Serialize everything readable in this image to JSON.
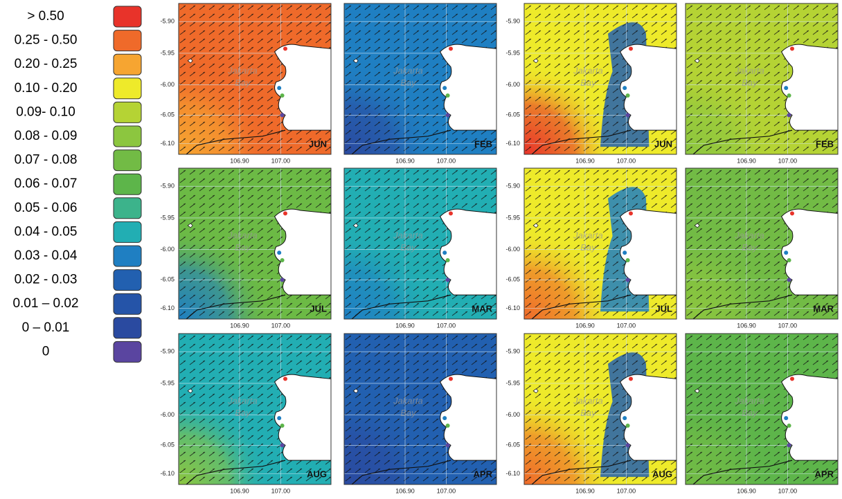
{
  "legend": [
    {
      "label": "> 0.50",
      "color": "#e8332a"
    },
    {
      "label": "0.25 - 0.50",
      "color": "#ef6a2a"
    },
    {
      "label": "0.20 - 0.25",
      "color": "#f6a531"
    },
    {
      "label": "0.10 - 0.20",
      "color": "#eeea2a"
    },
    {
      "label": "0.09- 0.10",
      "color": "#b5d334"
    },
    {
      "label": "0.08 - 0.09",
      "color": "#8cc63f"
    },
    {
      "label": "0.07 - 0.08",
      "color": "#72bb45"
    },
    {
      "label": "0.06 - 0.07",
      "color": "#5db54a"
    },
    {
      "label": "0.05 - 0.06",
      "color": "#3cb38b"
    },
    {
      "label": "0.04 - 0.05",
      "color": "#22aeb3"
    },
    {
      "label": "0.03 - 0.04",
      "color": "#1f7fc2"
    },
    {
      "label": "0.02 - 0.03",
      "color": "#2260b0"
    },
    {
      "label": "0.01 – 0.02",
      "color": "#2554a8"
    },
    {
      "label": "0 – 0.01",
      "color": "#2a4aa0"
    },
    {
      "label": "0",
      "color": "#5a45a0"
    }
  ],
  "axes": {
    "y_ticks": [
      "-5.90",
      "-5.95",
      "-6.00",
      "-6.05",
      "-6.10"
    ],
    "x_ticks": [
      "106.90",
      "107.00"
    ]
  },
  "place_label": [
    "Jakarta",
    "Bay"
  ],
  "panels": [
    {
      "month": "JUN",
      "fill": "#ef6a2a",
      "accent": "#f6a531"
    },
    {
      "month": "JUL",
      "fill": "#6cba45",
      "accent": "#1f7fc2"
    },
    {
      "month": "AUG",
      "fill": "#22aeb3",
      "accent": "#8cc63f"
    },
    {
      "month": "FEB",
      "fill": "#1f7fc2",
      "accent": "#2a4aa0"
    },
    {
      "month": "MAR",
      "fill": "#22aeb3",
      "accent": "#1f7fc2"
    },
    {
      "month": "APR",
      "fill": "#2260b0",
      "accent": "#2a4aa0"
    },
    {
      "month": "JUN",
      "fill": "#eeea2a",
      "accent": "#e8332a",
      "coast": "#2260b0"
    },
    {
      "month": "JUL",
      "fill": "#eeea2a",
      "accent": "#ef6a2a",
      "coast": "#1f7fc2"
    },
    {
      "month": "AUG",
      "fill": "#eeea2a",
      "accent": "#ef6a2a",
      "coast": "#2260b0"
    },
    {
      "month": "FEB",
      "fill": "#b5d334",
      "accent": "#8cc63f"
    },
    {
      "month": "MAR",
      "fill": "#72bb45",
      "accent": "#8cc63f"
    },
    {
      "month": "APR",
      "fill": "#5db54a",
      "accent": "#72bb45"
    }
  ]
}
